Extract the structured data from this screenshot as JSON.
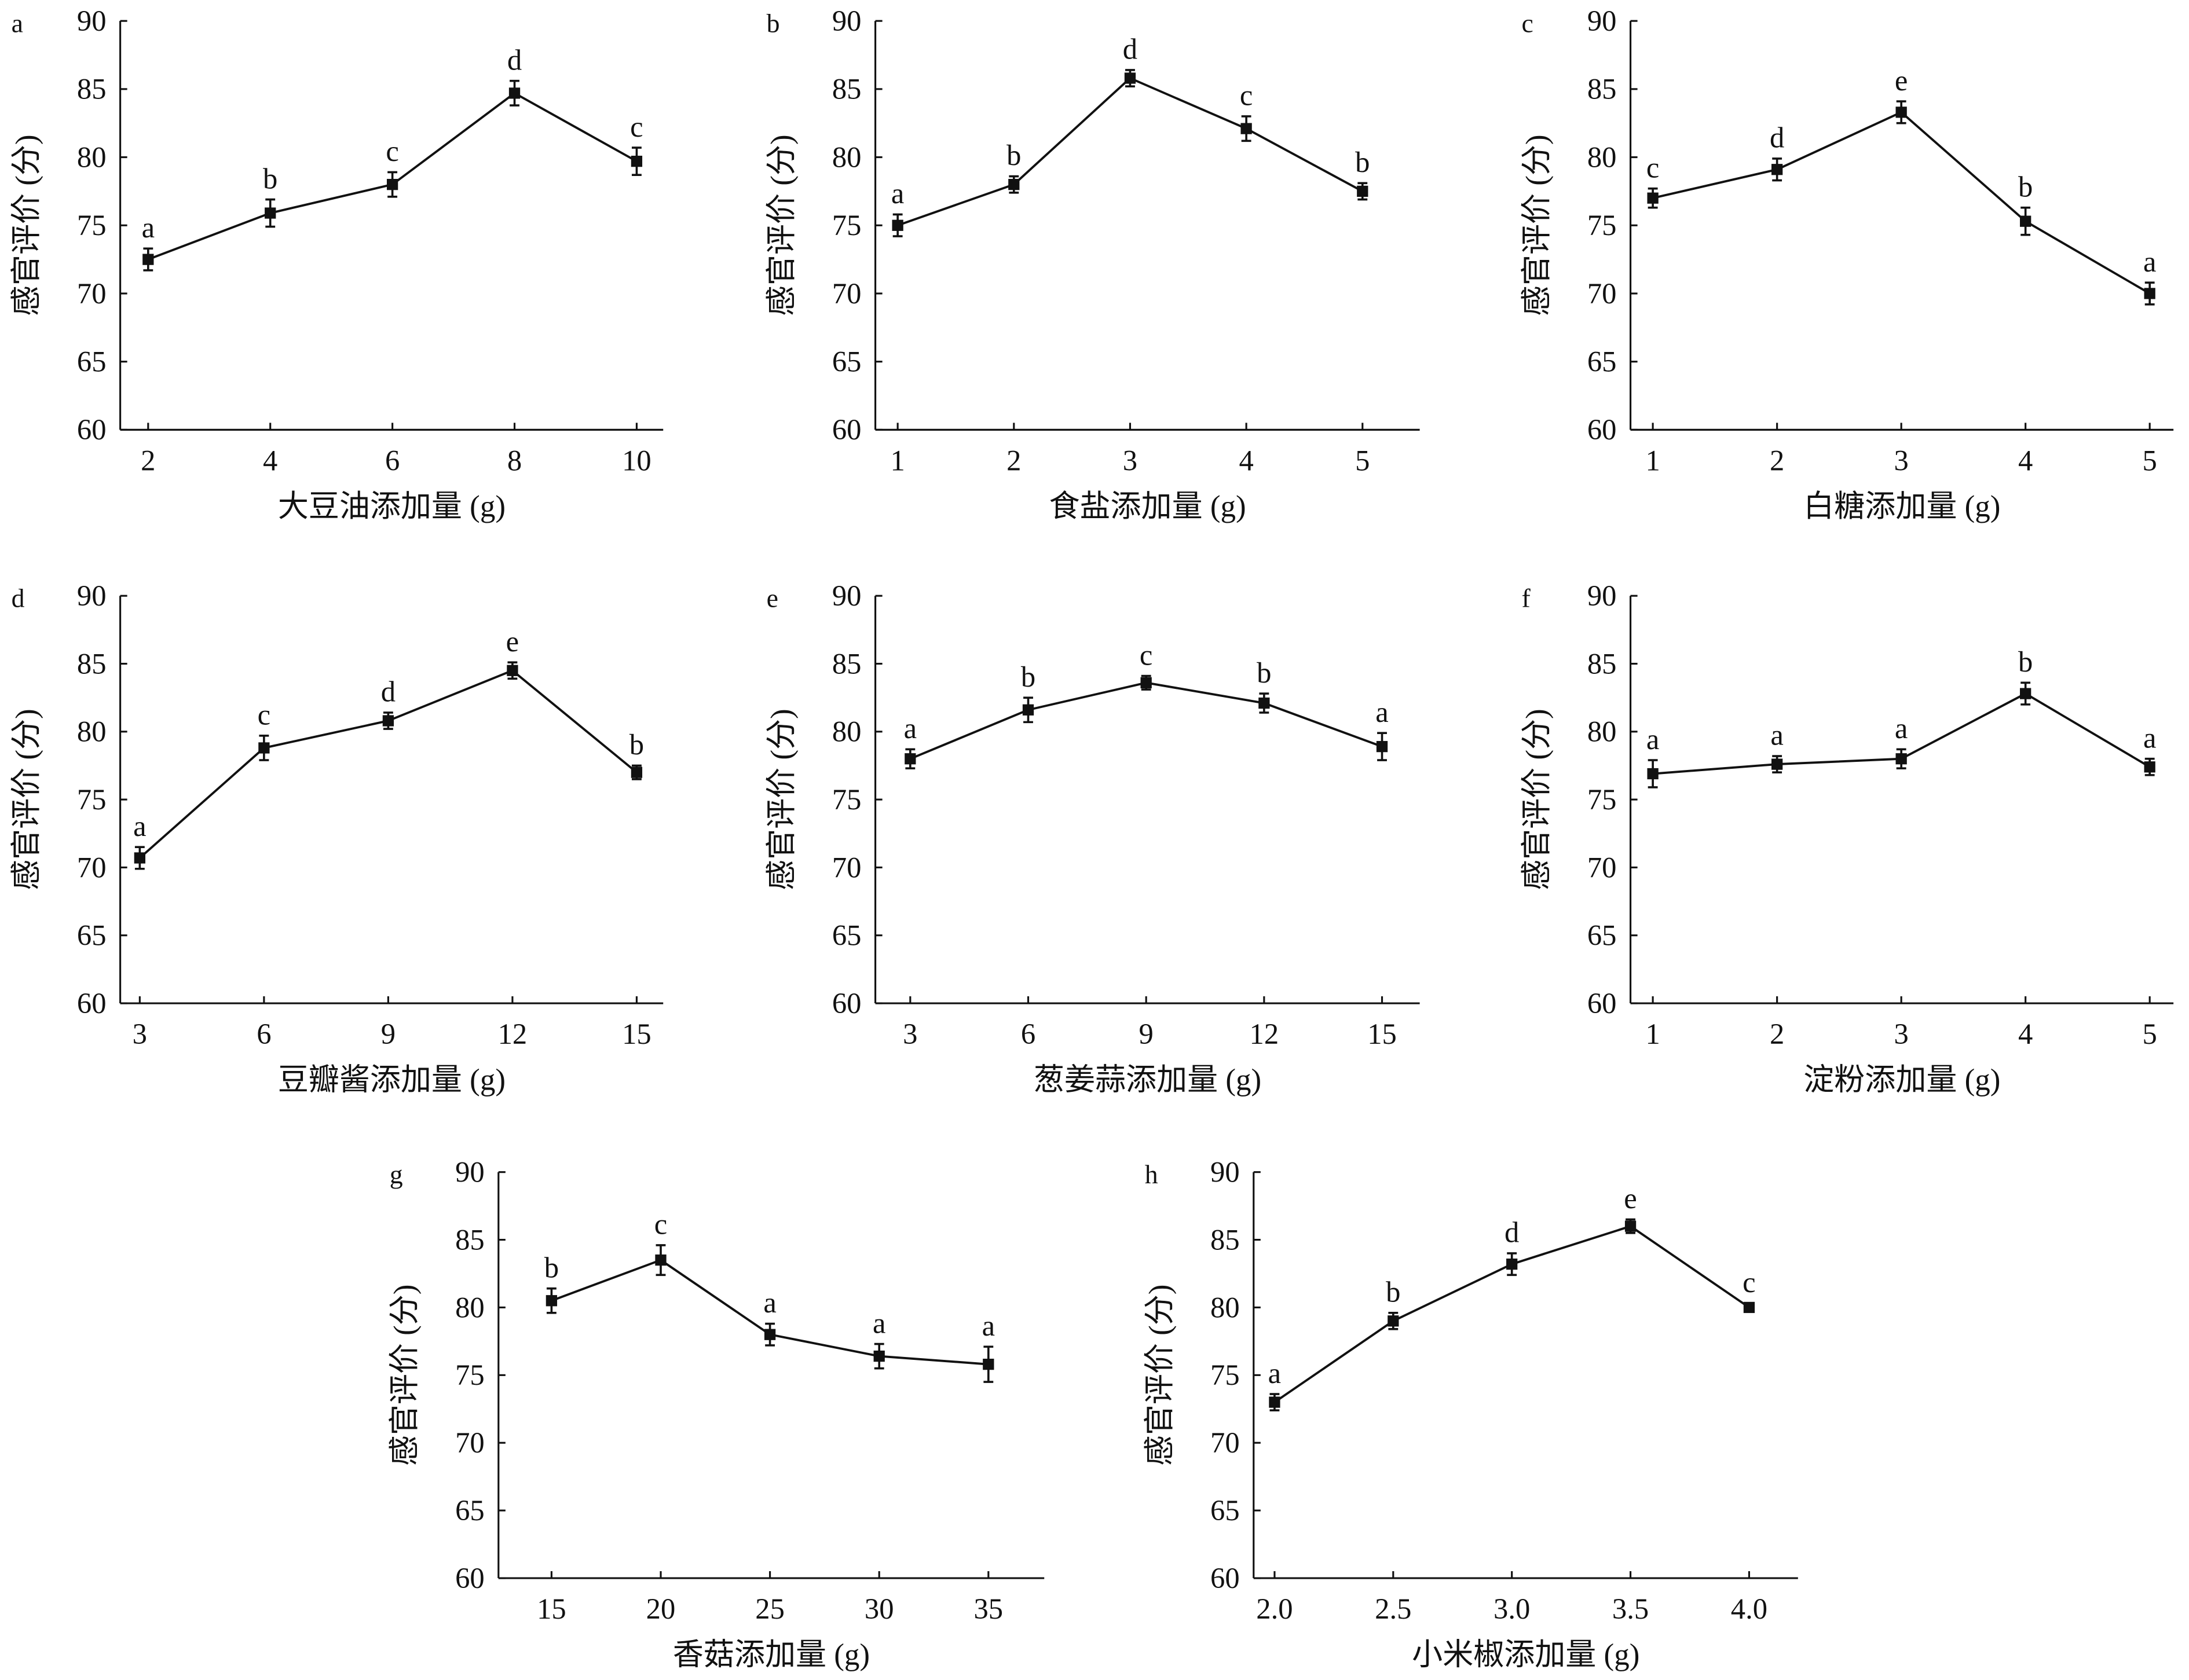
{
  "chart_data": [
    {
      "id": "a",
      "type": "line",
      "panel_label": "a",
      "xlabel": "大豆油添加量 (g)",
      "ylabel": "感官评价 (分)",
      "ylim": [
        60,
        90
      ],
      "yticks": [
        60,
        65,
        70,
        75,
        80,
        85,
        90
      ],
      "x": [
        "2",
        "4",
        "6",
        "8",
        "10"
      ],
      "values": [
        72.5,
        75.9,
        78.0,
        84.7,
        79.7
      ],
      "errors": [
        0.8,
        1.0,
        0.9,
        0.9,
        1.0
      ],
      "letters": [
        "a",
        "b",
        "c",
        "d",
        "c"
      ]
    },
    {
      "id": "b",
      "type": "line",
      "panel_label": "b",
      "xlabel": "食盐添加量 (g)",
      "ylabel": "感官评价 (分)",
      "ylim": [
        60,
        90
      ],
      "yticks": [
        60,
        65,
        70,
        75,
        80,
        85,
        90
      ],
      "x": [
        "1",
        "2",
        "3",
        "4",
        "5"
      ],
      "values": [
        75.0,
        78.0,
        85.8,
        82.1,
        77.5
      ],
      "errors": [
        0.8,
        0.6,
        0.6,
        0.9,
        0.6
      ],
      "letters": [
        "a",
        "b",
        "d",
        "c",
        "b"
      ]
    },
    {
      "id": "c",
      "type": "line",
      "panel_label": "c",
      "xlabel": "白糖添加量 (g)",
      "ylabel": "感官评价 (分)",
      "ylim": [
        60,
        90
      ],
      "yticks": [
        60,
        65,
        70,
        75,
        80,
        85,
        90
      ],
      "x": [
        "1",
        "2",
        "3",
        "4",
        "5"
      ],
      "values": [
        77.0,
        79.1,
        83.3,
        75.3,
        70.0
      ],
      "errors": [
        0.7,
        0.8,
        0.8,
        1.0,
        0.8
      ],
      "letters": [
        "c",
        "d",
        "e",
        "b",
        "a"
      ]
    },
    {
      "id": "d",
      "type": "line",
      "panel_label": "d",
      "xlabel": "豆瓣酱添加量 (g)",
      "ylabel": "感官评价 (分)",
      "ylim": [
        60,
        90
      ],
      "yticks": [
        60,
        65,
        70,
        75,
        80,
        85,
        90
      ],
      "x": [
        "3",
        "6",
        "9",
        "12",
        "15"
      ],
      "values": [
        70.7,
        78.8,
        80.8,
        84.5,
        77.0
      ],
      "errors": [
        0.8,
        0.9,
        0.6,
        0.6,
        0.5
      ],
      "letters": [
        "a",
        "c",
        "d",
        "e",
        "b"
      ]
    },
    {
      "id": "e",
      "type": "line",
      "panel_label": "e",
      "xlabel": "葱姜蒜添加量 (g)",
      "ylabel": "感官评价 (分)",
      "ylim": [
        60,
        90
      ],
      "yticks": [
        60,
        65,
        70,
        75,
        80,
        85,
        90
      ],
      "x": [
        "3",
        "6",
        "9",
        "12",
        "15"
      ],
      "values": [
        78.0,
        81.6,
        83.6,
        82.1,
        78.9
      ],
      "errors": [
        0.7,
        0.9,
        0.5,
        0.7,
        1.0
      ],
      "letters": [
        "a",
        "b",
        "c",
        "b",
        "a"
      ]
    },
    {
      "id": "f",
      "type": "line",
      "panel_label": "f",
      "xlabel": "淀粉添加量 (g)",
      "ylabel": "感官评价 (分)",
      "ylim": [
        60,
        90
      ],
      "yticks": [
        60,
        65,
        70,
        75,
        80,
        85,
        90
      ],
      "x": [
        "1",
        "2",
        "3",
        "4",
        "5"
      ],
      "values": [
        76.9,
        77.6,
        78.0,
        82.8,
        77.4
      ],
      "errors": [
        1.0,
        0.6,
        0.7,
        0.8,
        0.6
      ],
      "letters": [
        "a",
        "a",
        "a",
        "b",
        "a"
      ]
    },
    {
      "id": "g",
      "type": "line",
      "panel_label": "g",
      "xlabel": "香菇添加量 (g)",
      "ylabel": "感官评价 (分)",
      "ylim": [
        60,
        90
      ],
      "yticks": [
        60,
        65,
        70,
        75,
        80,
        85,
        90
      ],
      "x": [
        "15",
        "20",
        "25",
        "30",
        "35"
      ],
      "values": [
        80.5,
        83.5,
        78.0,
        76.4,
        75.8
      ],
      "errors": [
        0.9,
        1.1,
        0.8,
        0.9,
        1.3
      ],
      "letters": [
        "b",
        "c",
        "a",
        "a",
        "a"
      ]
    },
    {
      "id": "h",
      "type": "line",
      "panel_label": "h",
      "xlabel": "小米椒添加量 (g)",
      "ylabel": "感官评价 (分)",
      "ylim": [
        60,
        90
      ],
      "yticks": [
        60,
        65,
        70,
        75,
        80,
        85,
        90
      ],
      "x": [
        "2.0",
        "2.5",
        "3.0",
        "3.5",
        "4.0"
      ],
      "values": [
        73.0,
        79.0,
        83.2,
        86.0,
        80.0
      ],
      "errors": [
        0.6,
        0.6,
        0.8,
        0.5,
        0.3
      ],
      "letters": [
        "a",
        "b",
        "d",
        "e",
        "c"
      ]
    }
  ]
}
